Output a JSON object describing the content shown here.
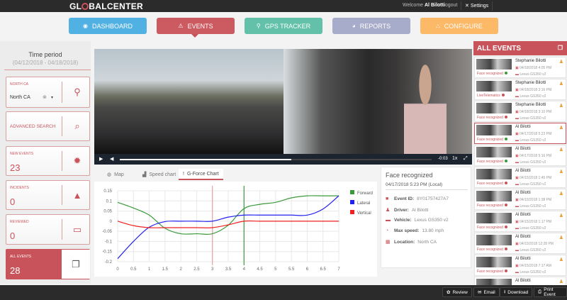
{
  "header": {
    "logo": "GLOBALCENTER",
    "welcome_prefix": "Welcome",
    "user": "Al Bilotti",
    "logout": "Logout",
    "settings": "Settings"
  },
  "nav": [
    {
      "label": "DASHBOARD",
      "icon": "dashboard-icon",
      "color": "#4aaee3"
    },
    {
      "label": "EVENTS",
      "icon": "warning-icon",
      "color": "#c9535a"
    },
    {
      "label": "GPS TRACKER",
      "icon": "map-pin-icon",
      "color": "#5bbfa5"
    },
    {
      "label": "REPORTS",
      "icon": "pie-icon",
      "color": "#a5a9c9"
    },
    {
      "label": "CONFIGURE",
      "icon": "sitemap-icon",
      "color": "#fdb660"
    }
  ],
  "sidebar": {
    "time_title": "Time period",
    "time_range": "(04/12/2018 - 04/18/2018)",
    "region": {
      "label": "NORTH CA",
      "value": "North CA"
    },
    "advanced": "ADVANCED SEARCH",
    "new_events": {
      "label": "NEW EVENTS",
      "value": "23"
    },
    "incidents": {
      "label": "INCIDENTS",
      "value": "0"
    },
    "reviewed": {
      "label": "REVIEWED",
      "value": "0"
    },
    "all_events": {
      "label": "ALL EVENTS",
      "value": "28"
    }
  },
  "video": {
    "time": "-0:03",
    "speed": "1x",
    "progress_percent": 55
  },
  "tabs": [
    {
      "label": "Map"
    },
    {
      "label": "Speed chart"
    },
    {
      "label": "G-Force Chart",
      "selected": true
    }
  ],
  "chart_data": {
    "type": "line",
    "x": [
      0,
      0.5,
      1,
      1.5,
      2,
      2.5,
      3,
      3.5,
      4,
      4.5,
      5,
      5.5,
      6,
      6.5,
      7
    ],
    "xticks": [
      "0",
      "0.5",
      "1",
      "1.5",
      "2",
      "2.5",
      "3",
      "3.5",
      "4",
      "4.5",
      "5",
      "5.5",
      "6",
      "6.5",
      "7"
    ],
    "yticks": [
      "0.15",
      "0.1",
      "0.05",
      "0",
      "-0.05",
      "-0.1",
      "-0.15",
      "-0.2"
    ],
    "ylim": [
      -0.2,
      0.15
    ],
    "xlim": [
      0,
      7
    ],
    "grid": true,
    "legend": "right",
    "markers": [
      {
        "x": 3,
        "color": "#e8a0a0"
      },
      {
        "x": 4,
        "color": "#3a9a3a"
      }
    ],
    "series": [
      {
        "name": "Forward",
        "color": "#3a9a3a",
        "values": [
          0.093,
          0.065,
          0.03,
          -0.035,
          -0.062,
          -0.062,
          -0.062,
          -0.02,
          0.062,
          0.083,
          0.093,
          0.115,
          0.125,
          0.125,
          0.125
        ]
      },
      {
        "name": "Lateral",
        "color": "#2222ee",
        "values": [
          -0.185,
          -0.1,
          -0.03,
          -0.002,
          0,
          0,
          0,
          0.02,
          0.03,
          0.03,
          0.03,
          0.03,
          0.03,
          0.06,
          0.125
        ]
      },
      {
        "name": "Vertical",
        "color": "#ee2222",
        "values": [
          0,
          -0.022,
          -0.032,
          -0.032,
          -0.032,
          -0.032,
          -0.032,
          -0.018,
          0,
          0,
          0,
          0,
          0,
          0,
          0
        ]
      }
    ]
  },
  "info": {
    "title": "Face recognized",
    "date": "04/17/2018 5:23 PM (Local)",
    "rows": [
      {
        "label": "Event ID:",
        "value": "8Y01757427A7",
        "icon": "folder-icon"
      },
      {
        "label": "Driver:",
        "value": "Al Bilotti",
        "icon": "user-icon"
      },
      {
        "label": "Vehicle:",
        "value": "Lexus GS350 v2",
        "icon": "car-icon"
      },
      {
        "label": "Max speed:",
        "value": "13.80 mph",
        "icon": "speedometer-icon"
      },
      {
        "label": "Location:",
        "value": "North CA",
        "icon": "map-icon"
      }
    ]
  },
  "events": {
    "title": "ALL EVENTS",
    "items": [
      {
        "name": "Stephanie Bilotti",
        "date": "04/18/2018 4:05 PM",
        "vehicle": "Lexus GS350 v2",
        "status": "Face recognized",
        "dot": "#3a9a3a"
      },
      {
        "name": "Stephanie Bilotti",
        "date": "04/18/2018 3:16 PM",
        "vehicle": "Lexus GS350 v2",
        "status": "LiveTelematics",
        "dot": "#c9535a"
      },
      {
        "name": "Stephanie Bilotti",
        "date": "04/18/2018 3:10 PM",
        "vehicle": "Lexus GS350 v2",
        "status": "Face recognized",
        "dot": "#c9535a"
      },
      {
        "name": "Al Bilotti",
        "date": "04/17/2018 5:23 PM",
        "vehicle": "Lexus GS350 v2",
        "status": "Face recognized",
        "dot": "#3a9a3a",
        "selected": true
      },
      {
        "name": "Al Bilotti",
        "date": "04/17/2018 5:16 PM",
        "vehicle": "Lexus GS350 v2",
        "status": "Face recognized",
        "dot": "#3a9a3a"
      },
      {
        "name": "Al Bilotti",
        "date": "04/15/2018 1:45 PM",
        "vehicle": "Lexus GS350 v2",
        "status": "Face recognized",
        "dot": "#c9535a"
      },
      {
        "name": "Al Bilotti",
        "date": "04/15/2018 1:38 PM",
        "vehicle": "Lexus GS350 v2",
        "status": "Face recognized",
        "dot": "#c9535a"
      },
      {
        "name": "Al Bilotti",
        "date": "04/15/2018 1:17 PM",
        "vehicle": "Lexus GS350 v2",
        "status": "Face recognized",
        "dot": "#c9535a"
      },
      {
        "name": "Al Bilotti",
        "date": "04/15/2018 12:28 PM",
        "vehicle": "Lexus GS350 v2",
        "status": "Face recognized",
        "dot": "#c9535a"
      },
      {
        "name": "Al Bilotti",
        "date": "04/15/2018 7:17 AM",
        "vehicle": "Lexus GS350 v2",
        "status": "Face recognized",
        "dot": "#c9535a"
      },
      {
        "name": "Al Bilotti",
        "date": "",
        "vehicle": "",
        "status": "",
        "dot": "#c9535a"
      }
    ]
  },
  "footer": [
    {
      "label": "Review",
      "icon": "review-icon"
    },
    {
      "label": "Email",
      "icon": "email-icon"
    },
    {
      "label": "Download",
      "icon": "download-icon"
    },
    {
      "label": "Print Event",
      "icon": "print-icon"
    }
  ]
}
